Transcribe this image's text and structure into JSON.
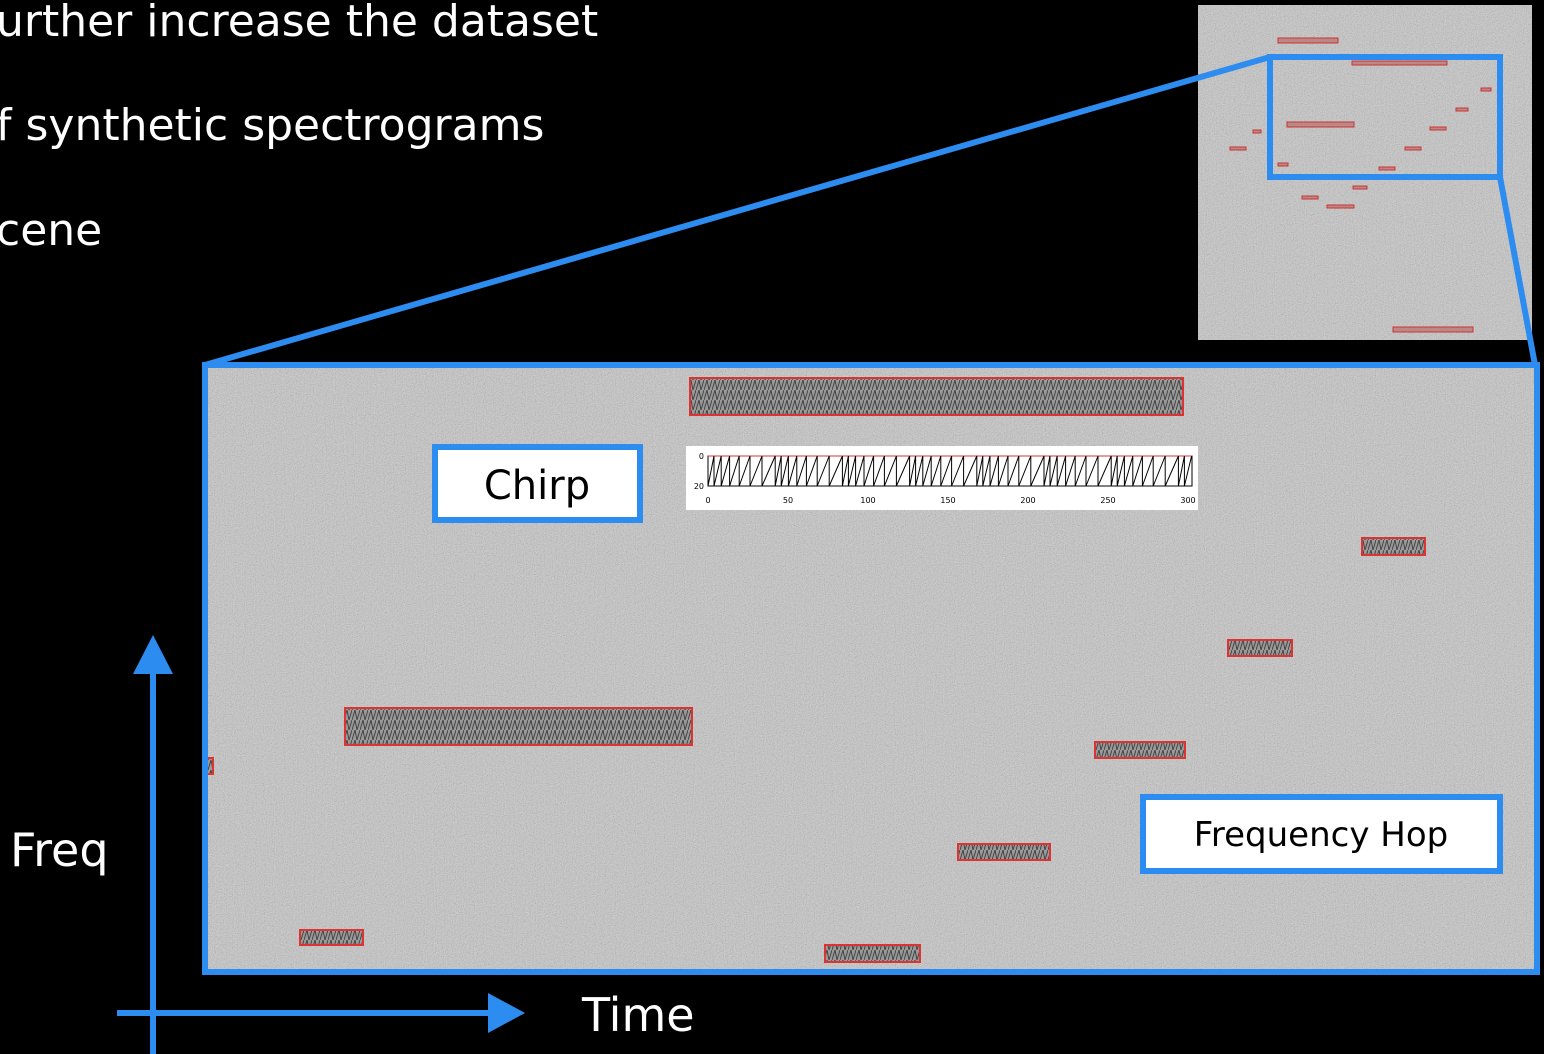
{
  "bullets": [
    "urther increase the dataset",
    "f synthetic spectrograms",
    "cene"
  ],
  "labels": {
    "chirp": "Chirp",
    "hop": "Frequency Hop"
  },
  "axes": {
    "y": "Freq",
    "x": "Time"
  },
  "inset": {
    "yticks": [
      0,
      20
    ],
    "xticks": [
      0,
      50,
      100,
      150,
      200,
      250,
      300
    ]
  }
}
